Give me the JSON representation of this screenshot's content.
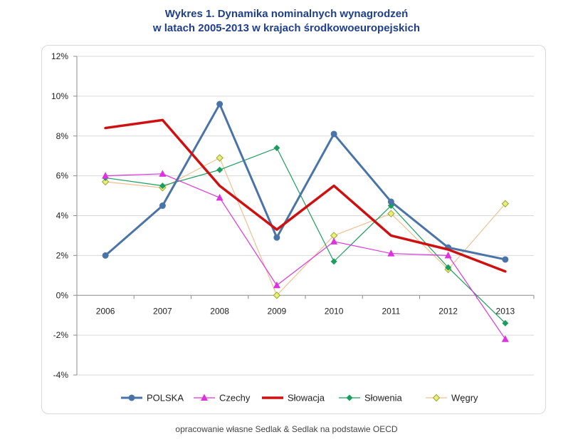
{
  "title_line1": "Wykres 1. Dynamika nominalnych wynagrodzeń",
  "title_line2": "w latach 2005-2013 w krajach środkowoeuropejskich",
  "source": "opracowanie własne Sedlak & Sedlak na podstawie OECD",
  "chart_data": {
    "type": "line",
    "title": "Wykres 1. Dynamika nominalnych wynagrodzeń w latach 2005-2013 w krajach środkowoeuropejskich",
    "xlabel": "",
    "ylabel": "",
    "categories": [
      "2006",
      "2007",
      "2008",
      "2009",
      "2010",
      "2011",
      "2012",
      "2013"
    ],
    "ylim": [
      -4,
      12
    ],
    "yticks": [
      -4,
      -2,
      0,
      2,
      4,
      6,
      8,
      10,
      12
    ],
    "ytick_labels": [
      "-4%",
      "-2%",
      "0%",
      "2%",
      "4%",
      "6%",
      "8%",
      "10%",
      "12%"
    ],
    "grid": true,
    "legend_position": "bottom",
    "series": [
      {
        "name": "POLSKA",
        "color": "#4a74a8",
        "width": 3,
        "marker": "circle",
        "values": [
          2.0,
          4.5,
          9.6,
          2.9,
          8.1,
          4.7,
          2.4,
          1.8
        ]
      },
      {
        "name": "Czechy",
        "color": "#dd33dd",
        "width": 1.2,
        "marker": "triangle",
        "values": [
          6.0,
          6.1,
          4.9,
          0.5,
          2.7,
          2.1,
          2.0,
          -2.2
        ]
      },
      {
        "name": "Słowacja",
        "color": "#d01010",
        "width": 3.5,
        "marker": "none",
        "values": [
          8.4,
          8.8,
          5.5,
          3.3,
          5.5,
          3.0,
          2.3,
          1.2
        ]
      },
      {
        "name": "Słowenia",
        "color": "#1a9e5e",
        "width": 1.2,
        "marker": "diamond",
        "values": [
          5.9,
          5.5,
          6.3,
          7.4,
          1.7,
          4.5,
          1.4,
          -1.4
        ]
      },
      {
        "name": "Węgry",
        "color": "#f0c090",
        "marker_fill": "#e8f07a",
        "marker_stroke": "#9aa830",
        "width": 1.2,
        "marker": "diamond-open",
        "values": [
          5.7,
          5.4,
          6.9,
          0.0,
          3.0,
          4.1,
          1.3,
          4.6
        ]
      }
    ]
  }
}
